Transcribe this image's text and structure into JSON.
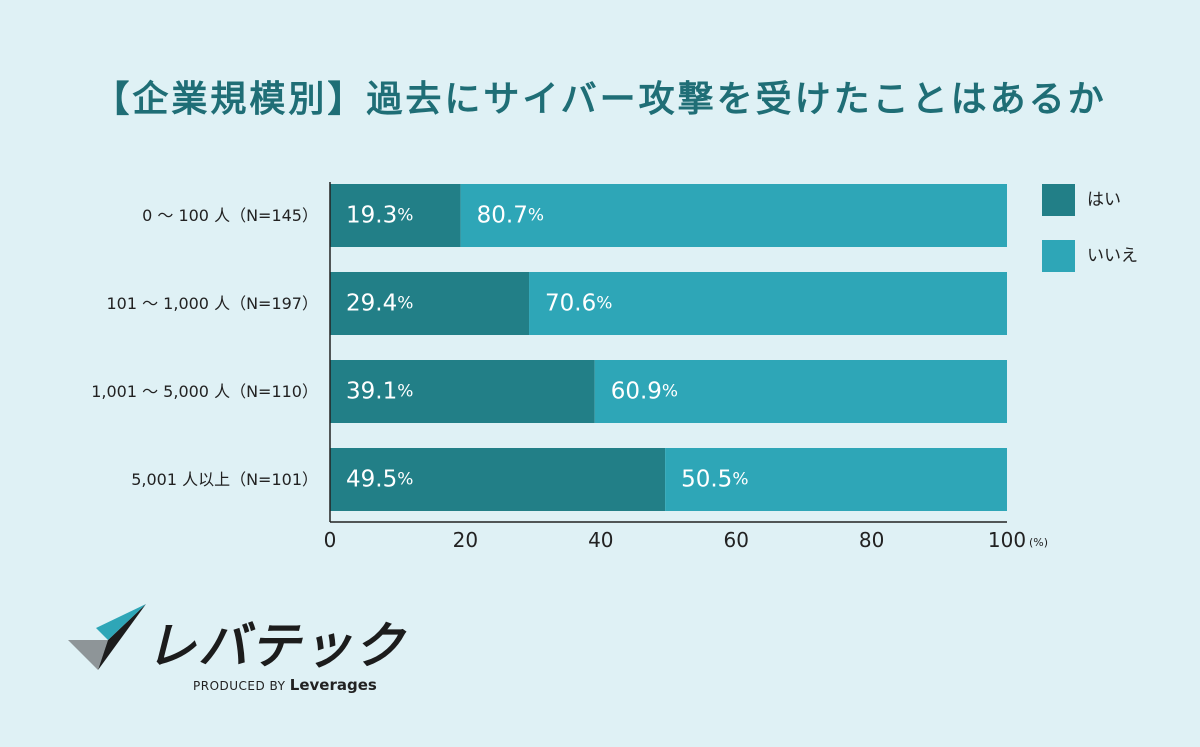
{
  "chart_data": {
    "type": "bar",
    "orientation": "horizontal",
    "stacked": true,
    "title": "【企業規模別】過去にサイバー攻撃を受けたことはあるか",
    "categories": [
      "0 〜 100 人（N=145）",
      "101 〜 1,000 人（N=197）",
      "1,001 〜 5,000 人（N=110）",
      "5,001 人以上（N=101）"
    ],
    "series": [
      {
        "name": "はい",
        "values": [
          19.3,
          29.4,
          39.1,
          49.5
        ],
        "color": "#227f87"
      },
      {
        "name": "いいえ",
        "values": [
          80.7,
          70.6,
          60.9,
          50.5
        ],
        "color": "#2ea6b7"
      }
    ],
    "xlim": [
      0,
      100
    ],
    "xticks": [
      "0",
      "20",
      "40",
      "60",
      "80",
      "100"
    ],
    "x_unit": "(%)",
    "value_suffix": "%",
    "legend_position": "right",
    "grid": false
  },
  "brand": {
    "name": "レバテック",
    "produced_by": "PRODUCED BY",
    "company": "Leverages",
    "logo_icon": "leverages-check-logo-icon"
  }
}
